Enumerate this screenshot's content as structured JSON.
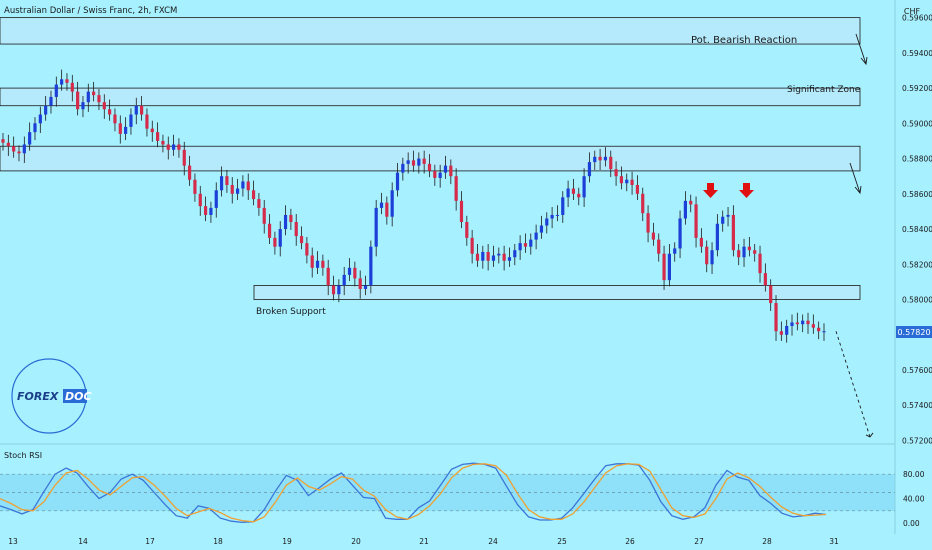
{
  "header": {
    "title": "Australian Dollar / Swiss Franc, 2h, FXCM",
    "currency": "CHF"
  },
  "zones": [
    {
      "name": "pot-bearish-zone",
      "label": "Pot. Bearish Reaction",
      "top": 0.596,
      "bottom": 0.5945
    },
    {
      "name": "significant-zone",
      "label": "Significant Zone",
      "top": 0.592,
      "bottom": 0.591
    },
    {
      "name": "middle-zone",
      "label": "",
      "top": 0.5887,
      "bottom": 0.5873
    },
    {
      "name": "broken-support-zone",
      "label": "Broken Support",
      "top": 0.5808,
      "bottom": 0.58
    }
  ],
  "logo": {
    "text_a": "FOREX",
    "text_b": "DOC"
  },
  "price_badge": "0.57820",
  "rsi": {
    "title": "Stoch RSI",
    "ticks": [
      "80.00",
      "40.00",
      "0.00"
    ]
  },
  "chart_data": {
    "type": "candlestick",
    "title": "Australian Dollar / Swiss Franc, 2h, FXCM",
    "y_unit": "CHF",
    "ylim": [
      0.5718,
      0.597
    ],
    "y_ticks": [
      0.596,
      0.594,
      0.592,
      0.59,
      0.588,
      0.586,
      0.584,
      0.582,
      0.58,
      0.578,
      0.576,
      0.574,
      0.572
    ],
    "y_tick_labels": [
      "0.59600",
      "0.59400",
      "0.59200",
      "0.59000",
      "0.58800",
      "0.58600",
      "0.58400",
      "0.58200",
      "0.58000",
      "0.57800",
      "0.57600",
      "0.57400",
      "0.57200"
    ],
    "x_tick_labels": [
      "13",
      "14",
      "17",
      "18",
      "19",
      "20",
      "21",
      "24",
      "25",
      "26",
      "27",
      "28",
      "31"
    ],
    "candles_close": [
      0.5889,
      0.5887,
      0.5884,
      0.5883,
      0.5888,
      0.5895,
      0.59,
      0.5905,
      0.591,
      0.5915,
      0.5922,
      0.5925,
      0.5923,
      0.5918,
      0.5908,
      0.5912,
      0.5918,
      0.5916,
      0.5912,
      0.5908,
      0.5905,
      0.59,
      0.5894,
      0.5898,
      0.5905,
      0.591,
      0.5905,
      0.5897,
      0.5895,
      0.589,
      0.5888,
      0.5885,
      0.5888,
      0.5885,
      0.5876,
      0.5868,
      0.586,
      0.5853,
      0.5848,
      0.5852,
      0.5862,
      0.587,
      0.5865,
      0.586,
      0.5863,
      0.5867,
      0.5862,
      0.5857,
      0.5852,
      0.5843,
      0.5835,
      0.583,
      0.584,
      0.5848,
      0.5844,
      0.5836,
      0.5832,
      0.5825,
      0.5818,
      0.5822,
      0.5818,
      0.5808,
      0.5803,
      0.5808,
      0.5814,
      0.5818,
      0.5812,
      0.5806,
      0.5808,
      0.583,
      0.5852,
      0.5855,
      0.5847,
      0.5862,
      0.5872,
      0.5877,
      0.5879,
      0.5876,
      0.588,
      0.5877,
      0.5873,
      0.5869,
      0.5872,
      0.5876,
      0.587,
      0.5856,
      0.5844,
      0.5835,
      0.5826,
      0.5822,
      0.5827,
      0.5822,
      0.5825,
      0.5826,
      0.5822,
      0.5824,
      0.5828,
      0.5832,
      0.583,
      0.5834,
      0.5838,
      0.5842,
      0.5846,
      0.5848,
      0.5848,
      0.5858,
      0.5863,
      0.586,
      0.5858,
      0.587,
      0.5878,
      0.5881,
      0.5879,
      0.5881,
      0.5874,
      0.587,
      0.5866,
      0.5868,
      0.5865,
      0.586,
      0.5849,
      0.5838,
      0.5834,
      0.5826,
      0.5811,
      0.5826,
      0.5829,
      0.5846,
      0.5856,
      0.5854,
      0.5835,
      0.583,
      0.582,
      0.5828,
      0.5843,
      0.5847,
      0.5848,
      0.5828,
      0.5824,
      0.583,
      0.5828,
      0.5826,
      0.5815,
      0.5808,
      0.5798,
      0.5782,
      0.578,
      0.5785,
      0.5787,
      0.5786,
      0.5788,
      0.5786,
      0.5784,
      0.5782,
      0.5782
    ],
    "projection": [
      [
        0.5782,
        0.5782
      ],
      [
        0.5722,
        0.5722
      ]
    ],
    "stoch_rsi": {
      "ylim": [
        0,
        100
      ],
      "levels": [
        80,
        20
      ],
      "k": [
        28,
        22,
        15,
        22,
        52,
        80,
        90,
        82,
        60,
        40,
        50,
        72,
        80,
        70,
        50,
        30,
        12,
        8,
        28,
        24,
        8,
        3,
        1,
        2,
        22,
        52,
        78,
        70,
        45,
        58,
        72,
        82,
        62,
        42,
        40,
        8,
        6,
        6,
        25,
        36,
        62,
        88,
        96,
        98,
        96,
        90,
        60,
        30,
        10,
        5,
        5,
        8,
        25,
        48,
        72,
        94,
        97,
        97,
        95,
        70,
        35,
        12,
        6,
        10,
        25,
        62,
        86,
        75,
        70,
        45,
        32,
        16,
        10,
        12,
        16,
        14
      ],
      "d": [
        40,
        32,
        22,
        20,
        35,
        62,
        82,
        86,
        72,
        54,
        46,
        60,
        74,
        76,
        62,
        44,
        24,
        12,
        18,
        24,
        17,
        8,
        4,
        2,
        10,
        34,
        62,
        74,
        60,
        54,
        64,
        76,
        72,
        54,
        44,
        22,
        10,
        6,
        14,
        28,
        48,
        74,
        90,
        96,
        97,
        94,
        78,
        48,
        22,
        10,
        6,
        6,
        15,
        34,
        58,
        82,
        94,
        97,
        96,
        85,
        55,
        25,
        12,
        9,
        15,
        40,
        72,
        82,
        74,
        60,
        42,
        26,
        16,
        12,
        13,
        14
      ]
    }
  }
}
